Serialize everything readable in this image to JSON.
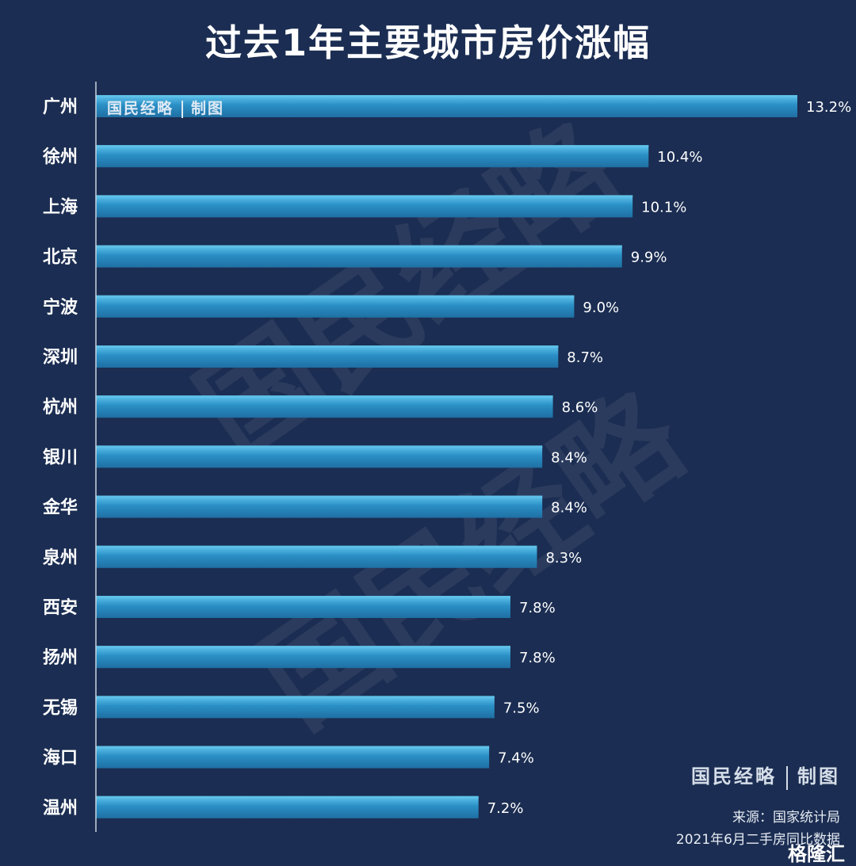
{
  "page": {
    "title": "过去1年主要城市房价涨幅"
  },
  "watermark": {
    "text": "国民经略"
  },
  "branding": {
    "name": "国民经略",
    "suffix": "制图"
  },
  "footer": {
    "source": "来源：国家统计局",
    "note": "2021年6月二手房同比数据",
    "corner_mark": "格隆汇"
  },
  "chart_data": {
    "type": "bar",
    "orientation": "horizontal",
    "title": "过去1年主要城市房价涨幅",
    "xlim": [
      0,
      13.2
    ],
    "categories": [
      "广州",
      "徐州",
      "上海",
      "北京",
      "宁波",
      "深圳",
      "杭州",
      "银川",
      "金华",
      "泉州",
      "西安",
      "扬州",
      "无锡",
      "海口",
      "温州"
    ],
    "values": [
      13.2,
      10.4,
      10.1,
      9.9,
      9.0,
      8.7,
      8.6,
      8.4,
      8.4,
      8.3,
      7.8,
      7.8,
      7.5,
      7.4,
      7.2
    ],
    "value_labels": [
      "13.2%",
      "10.4%",
      "10.1%",
      "9.9%",
      "9.0%",
      "8.7%",
      "8.6%",
      "8.4%",
      "8.4%",
      "8.3%",
      "7.8%",
      "7.8%",
      "7.5%",
      "7.4%",
      "7.2%"
    ],
    "bar_color": "#2a8fc5",
    "bar_highlight": "#5ec0e8"
  },
  "colors": {
    "background": "#1b2d52",
    "axis": "#c9d3e0",
    "text": "#ffffff"
  }
}
